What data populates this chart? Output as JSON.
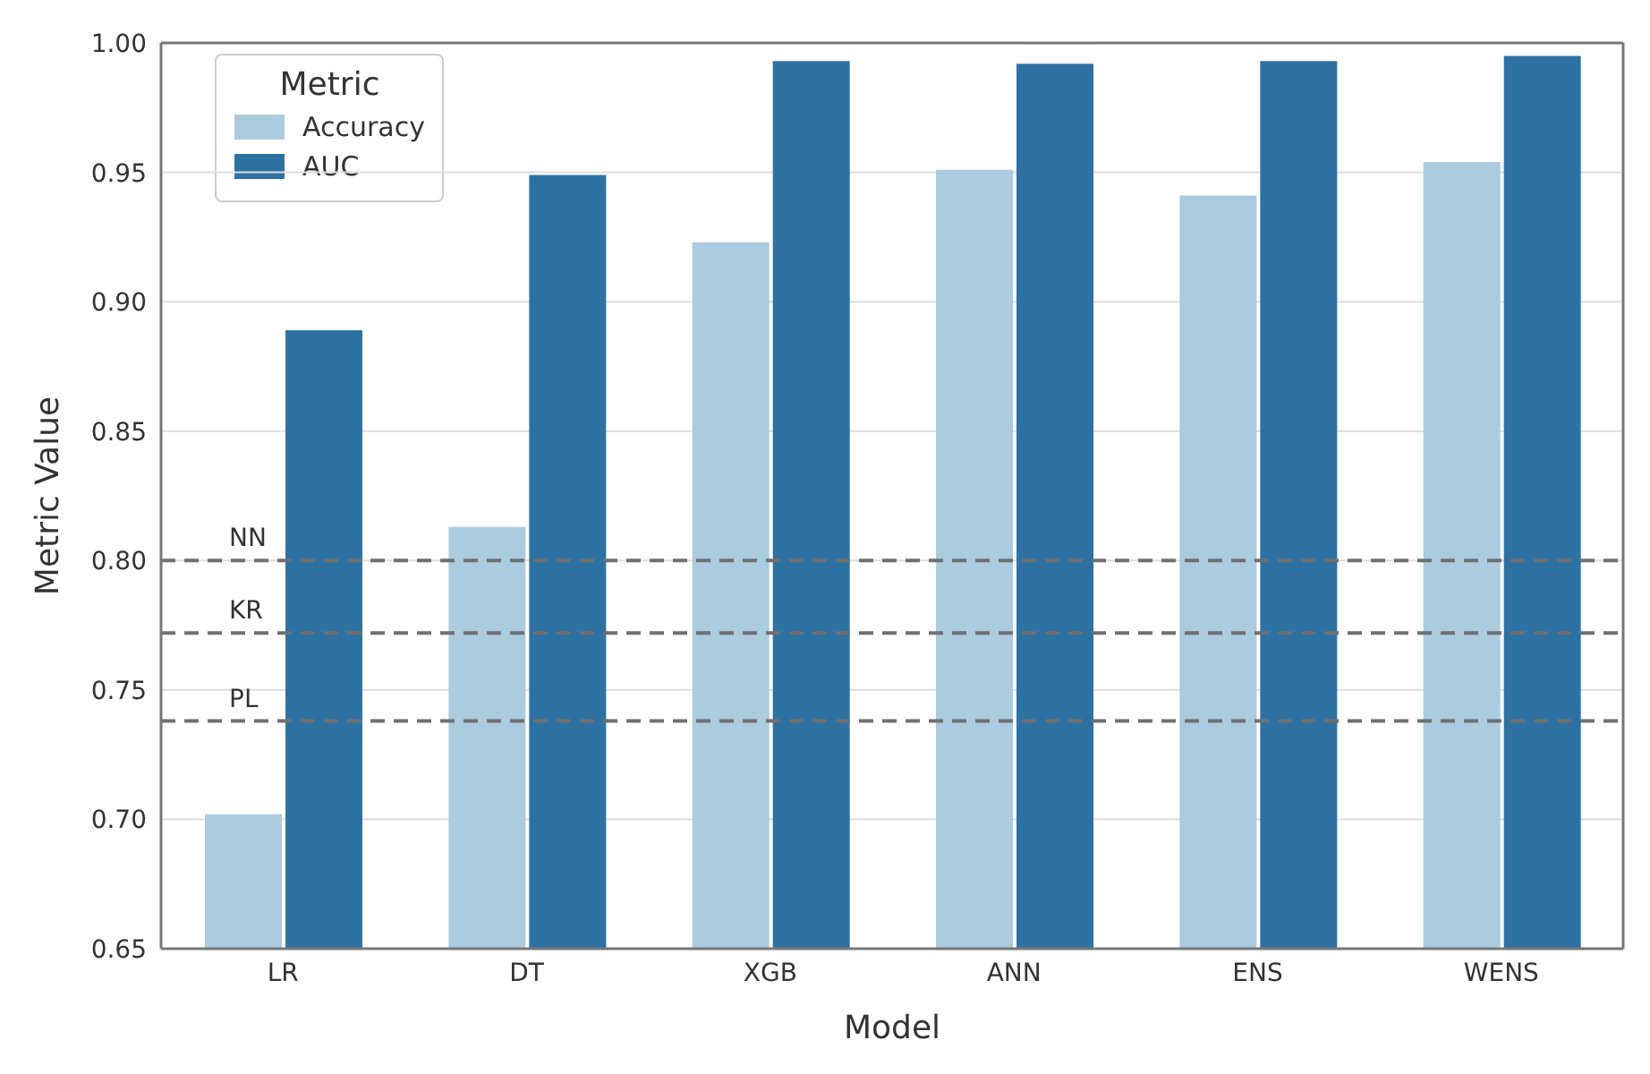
{
  "chart_data": {
    "type": "bar",
    "xlabel": "Model",
    "ylabel": "Metric Value",
    "legend_title": "Metric",
    "categories": [
      "LR",
      "DT",
      "XGB",
      "ANN",
      "ENS",
      "WENS"
    ],
    "series": [
      {
        "name": "Accuracy",
        "color": "#abcbdf",
        "values": [
          0.702,
          0.813,
          0.923,
          0.951,
          0.941,
          0.954
        ]
      },
      {
        "name": "AUC",
        "color": "#2e72a3",
        "values": [
          0.889,
          0.949,
          0.993,
          0.992,
          0.993,
          0.995
        ]
      }
    ],
    "ylim": [
      0.65,
      1.0
    ],
    "yticks": [
      0.65,
      {
        "value": 0.7,
        "label": "0.70"
      },
      0.75,
      {
        "value": 0.8,
        "label": "0.80"
      },
      0.85,
      {
        "value": 0.9,
        "label": "0.90"
      },
      0.95,
      {
        "value": 1.0,
        "label": "1.00"
      }
    ],
    "grid": "y",
    "legend": "top left",
    "ref_lines": [
      {
        "axis": "y",
        "value": 0.8,
        "label": "NN",
        "color": "#707070",
        "line_style": "dashed"
      },
      {
        "axis": "y",
        "value": 0.772,
        "label": "KR",
        "color": "#707070",
        "line_style": "dashed"
      },
      {
        "axis": "y",
        "value": 0.738,
        "label": "PL",
        "color": "#707070",
        "line_style": "dashed"
      }
    ]
  }
}
